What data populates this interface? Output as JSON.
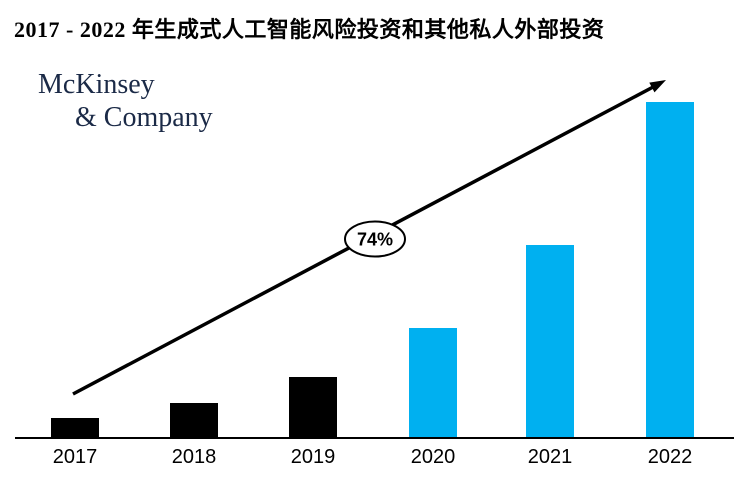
{
  "title": {
    "text": "2017 - 2022 年生成式人工智能风险投资和其他私人外部投资"
  },
  "logo": {
    "line1": "McKinsey",
    "line2": "& Company",
    "color": "#1b2a47"
  },
  "annotation": {
    "label": "74%"
  },
  "colors": {
    "bar_black": "#000000",
    "bar_blue": "#00b0f0",
    "axis": "#000000",
    "arrow": "#000000",
    "badge_fill": "#ffffff",
    "badge_stroke": "#000000"
  },
  "chart_data": {
    "type": "bar",
    "title": "2017 - 2022 年生成式人工智能风险投资和其他私人外部投资",
    "categories": [
      "2017",
      "2018",
      "2019",
      "2020",
      "2021",
      "2022"
    ],
    "values": [
      20,
      35,
      61,
      110,
      193,
      336
    ],
    "unit": "relative height (no value axis shown)",
    "bar_colors": [
      "#000000",
      "#000000",
      "#000000",
      "#00b0f0",
      "#00b0f0",
      "#00b0f0"
    ],
    "xlabel": "",
    "ylabel": "",
    "grid": false,
    "legend": false,
    "annotations": [
      {
        "text": "74%",
        "shape": "ellipse-on-growth-arrow"
      }
    ]
  }
}
